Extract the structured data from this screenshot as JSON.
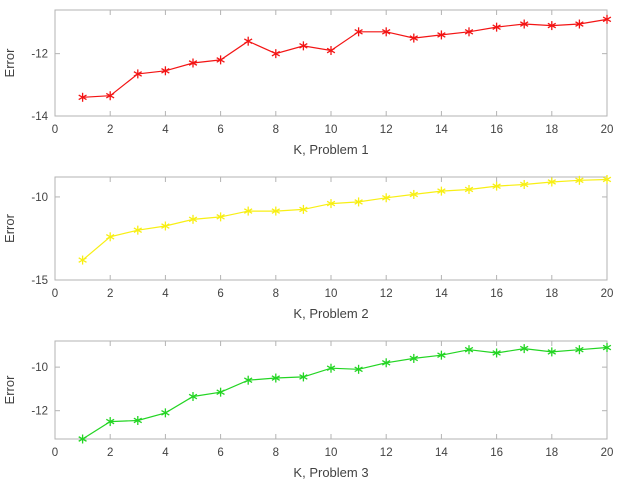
{
  "figure": {
    "background": "#ffffff",
    "axis_color": "#b3b3b3",
    "text_color": "#424242"
  },
  "chart_data": [
    {
      "type": "line",
      "title": "",
      "xlabel": "K, Problem 1",
      "ylabel": "Error",
      "xlim": [
        0,
        20
      ],
      "ylim": [
        -14,
        -10.6
      ],
      "xticks": [
        0,
        2,
        4,
        6,
        8,
        10,
        12,
        14,
        16,
        18,
        20
      ],
      "yticks": [
        -14,
        -12
      ],
      "grid": false,
      "legend": "none",
      "marker": "asterisk",
      "x": [
        1,
        2,
        3,
        4,
        5,
        6,
        7,
        8,
        9,
        10,
        11,
        12,
        13,
        14,
        15,
        16,
        17,
        18,
        19,
        20
      ],
      "series": [
        {
          "name": "Problem 1",
          "color": "#f31414",
          "values": [
            -13.4,
            -13.35,
            -12.65,
            -12.55,
            -12.3,
            -12.2,
            -11.6,
            -12.0,
            -11.75,
            -11.9,
            -11.3,
            -11.3,
            -11.5,
            -11.4,
            -11.3,
            -11.15,
            -11.05,
            -11.1,
            -11.05,
            -10.9
          ]
        }
      ]
    },
    {
      "type": "line",
      "title": "",
      "xlabel": "K, Problem 2",
      "ylabel": "Error",
      "xlim": [
        0,
        20
      ],
      "ylim": [
        -15,
        -8.8
      ],
      "xticks": [
        0,
        2,
        4,
        6,
        8,
        10,
        12,
        14,
        16,
        18,
        20
      ],
      "yticks": [
        -15,
        -10
      ],
      "grid": false,
      "legend": "none",
      "marker": "asterisk",
      "x": [
        1,
        2,
        3,
        4,
        5,
        6,
        7,
        8,
        9,
        10,
        11,
        12,
        13,
        14,
        15,
        16,
        17,
        18,
        19,
        20
      ],
      "series": [
        {
          "name": "Problem 2",
          "color": "#f8ef14",
          "values": [
            -13.8,
            -12.4,
            -12.0,
            -11.75,
            -11.35,
            -11.2,
            -10.85,
            -10.85,
            -10.75,
            -10.4,
            -10.3,
            -10.05,
            -9.85,
            -9.65,
            -9.55,
            -9.35,
            -9.25,
            -9.1,
            -9.0,
            -8.95
          ]
        }
      ]
    },
    {
      "type": "line",
      "title": "",
      "xlabel": "K, Problem 3",
      "ylabel": "Error",
      "xlim": [
        0,
        20
      ],
      "ylim": [
        -13.3,
        -8.8
      ],
      "xticks": [
        0,
        2,
        4,
        6,
        8,
        10,
        12,
        14,
        16,
        18,
        20
      ],
      "yticks": [
        -12,
        -10
      ],
      "grid": false,
      "legend": "none",
      "marker": "asterisk",
      "x": [
        1,
        2,
        3,
        4,
        5,
        6,
        7,
        8,
        9,
        10,
        11,
        12,
        13,
        14,
        15,
        16,
        17,
        18,
        19,
        20
      ],
      "series": [
        {
          "name": "Problem 3",
          "color": "#23d523",
          "values": [
            -13.3,
            -12.5,
            -12.45,
            -12.1,
            -11.35,
            -11.15,
            -10.6,
            -10.5,
            -10.45,
            -10.05,
            -10.1,
            -9.8,
            -9.6,
            -9.45,
            -9.2,
            -9.35,
            -9.15,
            -9.3,
            -9.2,
            -9.1
          ]
        }
      ]
    }
  ]
}
